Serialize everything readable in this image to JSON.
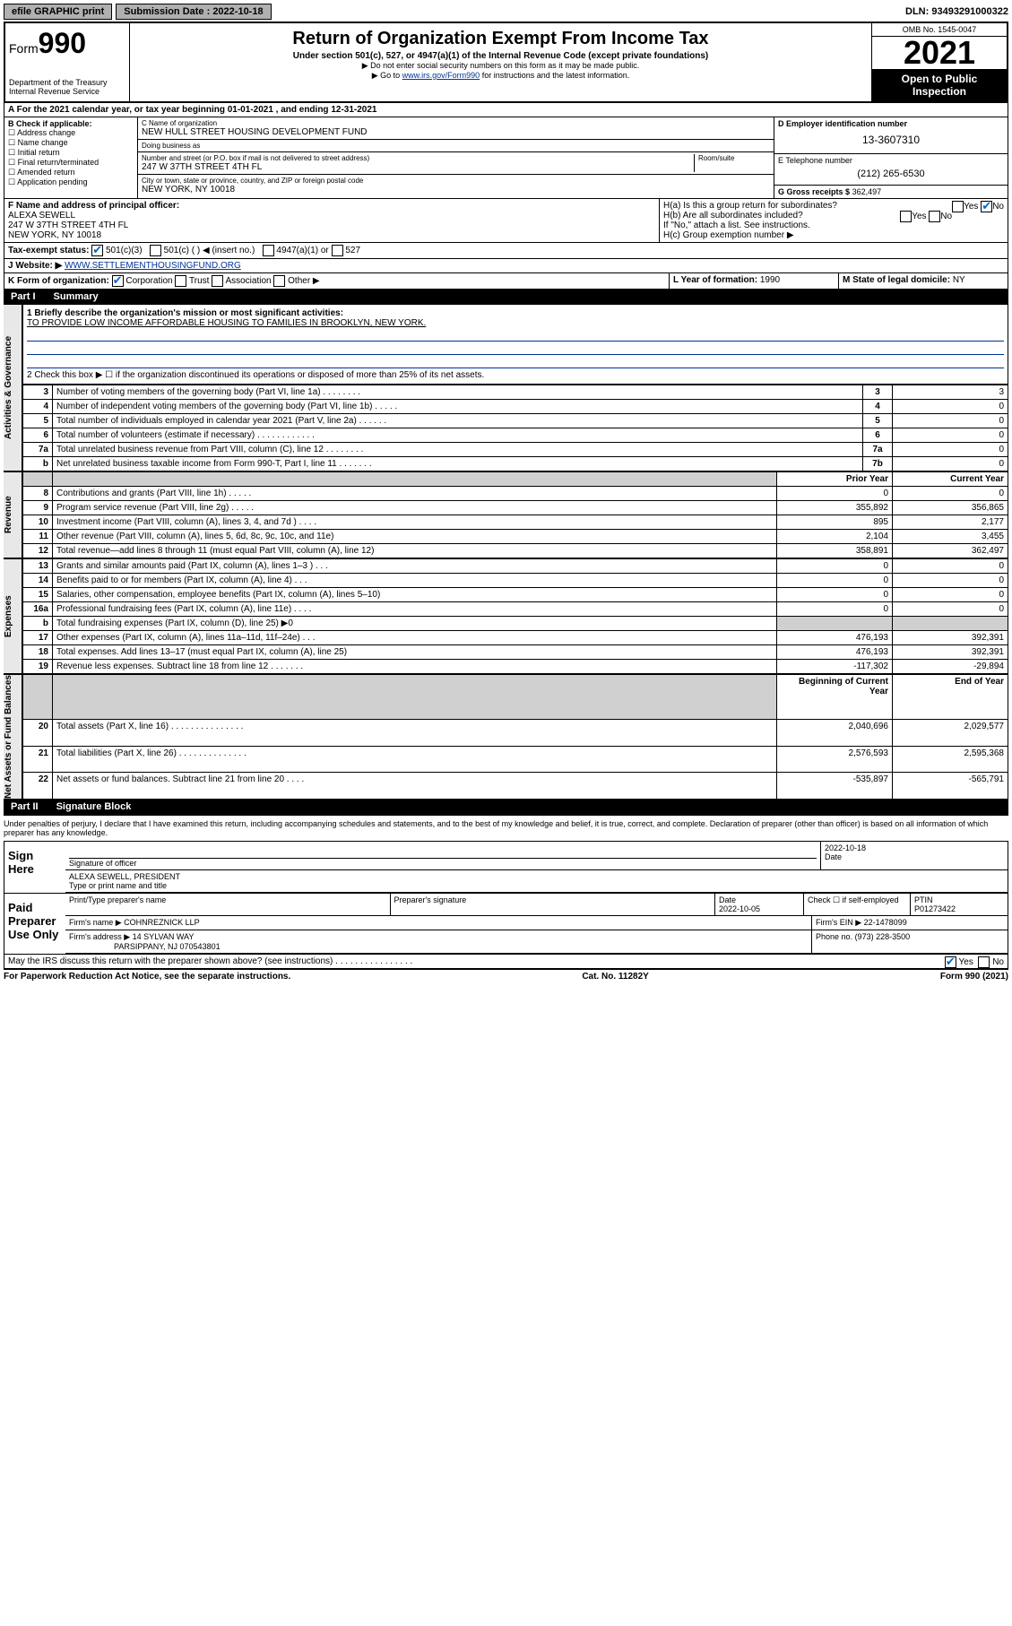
{
  "topbar": {
    "efile": "efile GRAPHIC print",
    "submission_label": "Submission Date : 2022-10-18",
    "dln": "DLN: 93493291000322"
  },
  "header": {
    "form_word": "Form",
    "form_num": "990",
    "dept": "Department of the Treasury",
    "irs": "Internal Revenue Service",
    "title": "Return of Organization Exempt From Income Tax",
    "sub": "Under section 501(c), 527, or 4947(a)(1) of the Internal Revenue Code (except private foundations)",
    "note1": "▶ Do not enter social security numbers on this form as it may be made public.",
    "note2_pre": "▶ Go to ",
    "note2_link": "www.irs.gov/Form990",
    "note2_post": " for instructions and the latest information.",
    "omb": "OMB No. 1545-0047",
    "year": "2021",
    "open": "Open to Public Inspection"
  },
  "rowA": "A For the 2021 calendar year, or tax year beginning 01-01-2021   , and ending 12-31-2021",
  "colB": {
    "hdr": "B Check if applicable:",
    "o1": "Address change",
    "o2": "Name change",
    "o3": "Initial return",
    "o4": "Final return/terminated",
    "o5": "Amended return",
    "o6": "Application pending"
  },
  "colC": {
    "name_label": "C Name of organization",
    "name": "NEW HULL STREET HOUSING DEVELOPMENT FUND",
    "dba_label": "Doing business as",
    "dba": "",
    "addr_label": "Number and street (or P.O. box if mail is not delivered to street address)",
    "room_label": "Room/suite",
    "addr": "247 W 37TH STREET 4TH FL",
    "city_label": "City or town, state or province, country, and ZIP or foreign postal code",
    "city": "NEW YORK, NY  10018"
  },
  "colD": {
    "ein_label": "D Employer identification number",
    "ein": "13-3607310",
    "tel_label": "E Telephone number",
    "tel": "(212) 265-6530",
    "gross_label": "G Gross receipts $",
    "gross": "362,497"
  },
  "rowF": {
    "label": "F  Name and address of principal officer:",
    "name": "ALEXA SEWELL",
    "addr1": "247 W 37TH STREET 4TH FL",
    "addr2": "NEW YORK, NY  10018"
  },
  "rowH": {
    "ha": "H(a)  Is this a group return for subordinates?",
    "hb": "H(b)  Are all subordinates included?",
    "hb_note": "If \"No,\" attach a list. See instructions.",
    "hc": "H(c)  Group exemption number ▶",
    "yes": "Yes",
    "no": "No"
  },
  "rowI": {
    "label": "Tax-exempt status:",
    "o1": "501(c)(3)",
    "o2": "501(c) (   ) ◀ (insert no.)",
    "o3": "4947(a)(1) or",
    "o4": "527"
  },
  "rowJ": {
    "label": "J   Website: ▶",
    "val": "WWW.SETTLEMENTHOUSINGFUND.ORG"
  },
  "rowK": {
    "label": "K Form of organization:",
    "o1": "Corporation",
    "o2": "Trust",
    "o3": "Association",
    "o4": "Other ▶"
  },
  "rowL": {
    "label": "L Year of formation:",
    "val": "1990"
  },
  "rowM": {
    "label": "M State of legal domicile:",
    "val": "NY"
  },
  "part1": {
    "hdr_part": "Part I",
    "hdr_title": "Summary",
    "q1_label": "1   Briefly describe the organization's mission or most significant activities:",
    "q1_val": "TO PROVIDE LOW INCOME AFFORDABLE HOUSING TO FAMILIES IN BROOKLYN, NEW YORK.",
    "q2": "2   Check this box ▶ ☐  if the organization discontinued its operations or disposed of more than 25% of its net assets.",
    "side_ag": "Activities & Governance",
    "side_rev": "Revenue",
    "side_exp": "Expenses",
    "side_net": "Net Assets or Fund Balances",
    "rows_ag": [
      {
        "n": "3",
        "d": "Number of voting members of the governing body (Part VI, line 1a)   .    .    .    .    .    .    .    .",
        "b": "3",
        "v": "3"
      },
      {
        "n": "4",
        "d": "Number of independent voting members of the governing body (Part VI, line 1b)   .    .    .    .    .",
        "b": "4",
        "v": "0"
      },
      {
        "n": "5",
        "d": "Total number of individuals employed in calendar year 2021 (Part V, line 2a)   .    .    .    .    .    .",
        "b": "5",
        "v": "0"
      },
      {
        "n": "6",
        "d": "Total number of volunteers (estimate if necessary)   .    .    .    .    .    .    .    .    .    .    .    .",
        "b": "6",
        "v": "0"
      },
      {
        "n": "7a",
        "d": "Total unrelated business revenue from Part VIII, column (C), line 12   .    .    .    .    .    .    .    .",
        "b": "7a",
        "v": "0"
      },
      {
        "n": "b",
        "d": "Net unrelated business taxable income from Form 990-T, Part I, line 11    .    .    .    .    .    .    .",
        "b": "7b",
        "v": "0"
      }
    ],
    "hdr_prior": "Prior Year",
    "hdr_curr": "Current Year",
    "rows_rev": [
      {
        "n": "8",
        "d": "Contributions and grants (Part VIII, line 1h)    .    .    .    .    .",
        "p": "0",
        "c": "0"
      },
      {
        "n": "9",
        "d": "Program service revenue (Part VIII, line 2g)   .    .    .    .    .",
        "p": "355,892",
        "c": "356,865"
      },
      {
        "n": "10",
        "d": "Investment income (Part VIII, column (A), lines 3, 4, and 7d )    .    .    .    .",
        "p": "895",
        "c": "2,177"
      },
      {
        "n": "11",
        "d": "Other revenue (Part VIII, column (A), lines 5, 6d, 8c, 9c, 10c, and 11e)",
        "p": "2,104",
        "c": "3,455"
      },
      {
        "n": "12",
        "d": "Total revenue—add lines 8 through 11 (must equal Part VIII, column (A), line 12)",
        "p": "358,891",
        "c": "362,497"
      }
    ],
    "rows_exp": [
      {
        "n": "13",
        "d": "Grants and similar amounts paid (Part IX, column (A), lines 1–3 )   .    .    .",
        "p": "0",
        "c": "0"
      },
      {
        "n": "14",
        "d": "Benefits paid to or for members (Part IX, column (A), line 4)   .    .    .",
        "p": "0",
        "c": "0"
      },
      {
        "n": "15",
        "d": "Salaries, other compensation, employee benefits (Part IX, column (A), lines 5–10)",
        "p": "0",
        "c": "0"
      },
      {
        "n": "16a",
        "d": "Professional fundraising fees (Part IX, column (A), line 11e)    .    .    .    .",
        "p": "0",
        "c": "0"
      },
      {
        "n": "b",
        "d": "Total fundraising expenses (Part IX, column (D), line 25) ▶0",
        "p": "",
        "c": "",
        "shaded": true
      },
      {
        "n": "17",
        "d": "Other expenses (Part IX, column (A), lines 11a–11d, 11f–24e)   .    .    .",
        "p": "476,193",
        "c": "392,391"
      },
      {
        "n": "18",
        "d": "Total expenses. Add lines 13–17 (must equal Part IX, column (A), line 25)",
        "p": "476,193",
        "c": "392,391"
      },
      {
        "n": "19",
        "d": "Revenue less expenses. Subtract line 18 from line 12   .    .    .    .    .    .    .",
        "p": "-117,302",
        "c": "-29,894"
      }
    ],
    "hdr_beg": "Beginning of Current Year",
    "hdr_end": "End of Year",
    "rows_net": [
      {
        "n": "20",
        "d": "Total assets (Part X, line 16)   .   .   .   .   .   .   .   .   .   .   .   .   .   .   .",
        "p": "2,040,696",
        "c": "2,029,577"
      },
      {
        "n": "21",
        "d": "Total liabilities (Part X, line 26)   .   .   .   .   .   .   .   .   .   .   .   .   .   .",
        "p": "2,576,593",
        "c": "2,595,368"
      },
      {
        "n": "22",
        "d": "Net assets or fund balances. Subtract line 21 from line 20    .    .    .    .",
        "p": "-535,897",
        "c": "-565,791"
      }
    ]
  },
  "part2": {
    "hdr_part": "Part II",
    "hdr_title": "Signature Block",
    "perjury": "Under penalties of perjury, I declare that I have examined this return, including accompanying schedules and statements, and to the best of my knowledge and belief, it is true, correct, and complete. Declaration of preparer (other than officer) is based on all information of which preparer has any knowledge.",
    "sign_here": "Sign Here",
    "sig_officer": "Signature of officer",
    "sig_date_label": "Date",
    "sig_date": "2022-10-18",
    "sig_name": "ALEXA SEWELL, PRESIDENT",
    "sig_title_label": "Type or print name and title",
    "paid": "Paid Preparer Use Only",
    "prep_name_label": "Print/Type preparer's name",
    "prep_sig_label": "Preparer's signature",
    "prep_date_label": "Date",
    "prep_date": "2022-10-05",
    "prep_check": "Check ☐ if self-employed",
    "ptin_label": "PTIN",
    "ptin": "P01273422",
    "firm_name_label": "Firm's name      ▶",
    "firm_name": "COHNREZNICK LLP",
    "firm_ein_label": "Firm's EIN ▶",
    "firm_ein": "22-1478099",
    "firm_addr_label": "Firm's address  ▶",
    "firm_addr1": "14 SYLVAN WAY",
    "firm_addr2": "PARSIPPANY, NJ  070543801",
    "firm_phone_label": "Phone no.",
    "firm_phone": "(973) 228-3500",
    "discuss": "May the IRS discuss this return with the preparer shown above? (see instructions)    .    .    .    .    .    .    .    .    .    .    .    .    .    .    .    .",
    "yes": "Yes",
    "no": "No"
  },
  "footer": {
    "left": "For Paperwork Reduction Act Notice, see the separate instructions.",
    "mid": "Cat. No. 11282Y",
    "right": "Form 990 (2021)"
  }
}
